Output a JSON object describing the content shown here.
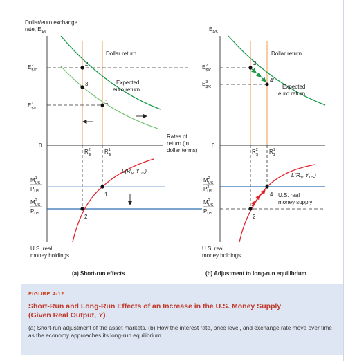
{
  "colors": {
    "dark_green": "#1a9a4a",
    "light_green": "#6cc26e",
    "red": "#e3242b",
    "blue": "#2e6fb5",
    "light_blue": "#8fb3da",
    "orange": "#f5a25a",
    "caption_bg": "#dfe6f3",
    "caption_label": "#d0451c",
    "caption_title": "#c0392b"
  },
  "left_panel": {
    "y_axis_title_line1": "Dollar/euro exchange",
    "y_axis_title_line2": "rate, E",
    "y_axis_title_sub": "$/€",
    "label_E2": "E",
    "label_E2_sup": "2",
    "label_E2_sub": "$/€",
    "label_E1": "E",
    "label_E1_sup": "1",
    "label_E1_sub": "$/€",
    "zero": "0",
    "dollar_return": "Dollar return",
    "expected_euro_return_1": "Expected",
    "expected_euro_return_2": "euro return",
    "point_2p": "2'",
    "point_3p": "3'",
    "point_1p": "1'",
    "R2": "R",
    "R2_sup": "2",
    "R2_sub": "$",
    "R1": "R",
    "R1_sup": "1",
    "R1_sub": "$",
    "L_curve": "L(R",
    "L_curve_sub1": "$",
    "L_curve_mid": ", Y",
    "L_curve_sub2": "US",
    "L_curve_end": ")",
    "M1_num": "M",
    "M1_num_sup": "1",
    "M1_num_sub": "US",
    "M1_den": "P",
    "M1_den_sub": "US",
    "M2_num": "M",
    "M2_num_sup": "2",
    "M2_num_sub": "US",
    "M2_den": "P",
    "M2_den_sub": "US",
    "point_1": "1",
    "point_2": "2",
    "bottom_axis_1": "U.S. real",
    "bottom_axis_2": "money holdings",
    "subtitle": "(a) Short-run effects"
  },
  "middle": {
    "rates_1": "Rates of",
    "rates_2": "return (in",
    "rates_3": "dollar terms)"
  },
  "right_panel": {
    "y_axis_title": "E",
    "y_axis_title_sub": "$/€",
    "label_E2": "E",
    "label_E2_sup": "2",
    "label_E2_sub": "$/€",
    "label_E3": "E",
    "label_E3_sup": "3",
    "label_E3_sub": "$/€",
    "zero": "0",
    "dollar_return": "Dollar return",
    "expected_euro_return_1": "Expected",
    "expected_euro_return_2": "euro return",
    "point_2p": "2'",
    "point_4p": "4'",
    "R2": "R",
    "R2_sup": "2",
    "R2_sub": "$",
    "R1": "R",
    "R1_sup": "1",
    "R1_sub": "$",
    "L_curve": "L(R",
    "L_curve_sub1": "$",
    "L_curve_mid": ", Y",
    "L_curve_sub2": "US",
    "L_curve_end": ")",
    "M2_num": "M",
    "M2_num_sup": "2",
    "M2_num_sub": "US",
    "M2_den1": "P",
    "M2_den1_sup": "2",
    "M2_den1_sub": "US",
    "M2b_num": "M",
    "M2b_num_sup": "2",
    "M2b_num_sub": "US",
    "M2b_den": "P",
    "M2b_den_sub": "US",
    "real_money_1": "U.S. real",
    "real_money_2": "money supply",
    "point_4": "4",
    "point_2": "2",
    "bottom_axis_1": "U.S. real",
    "bottom_axis_2": "money holdings",
    "subtitle": "(b) Adjustment to long-run equilibrium"
  },
  "caption": {
    "label": "FIGURE 4-12",
    "title_line1": "Short-Run and Long-Run Effects of an Increase in the U.S. Money Supply",
    "title_line2_a": "(Given Real Output, ",
    "title_line2_y": "Y",
    "title_line2_b": ")",
    "body": "(a) Short-run adjustment of the asset markets. (b) How the interest rate, price level, and exchange rate move over time as the economy approaches its long-run equilibrium."
  }
}
